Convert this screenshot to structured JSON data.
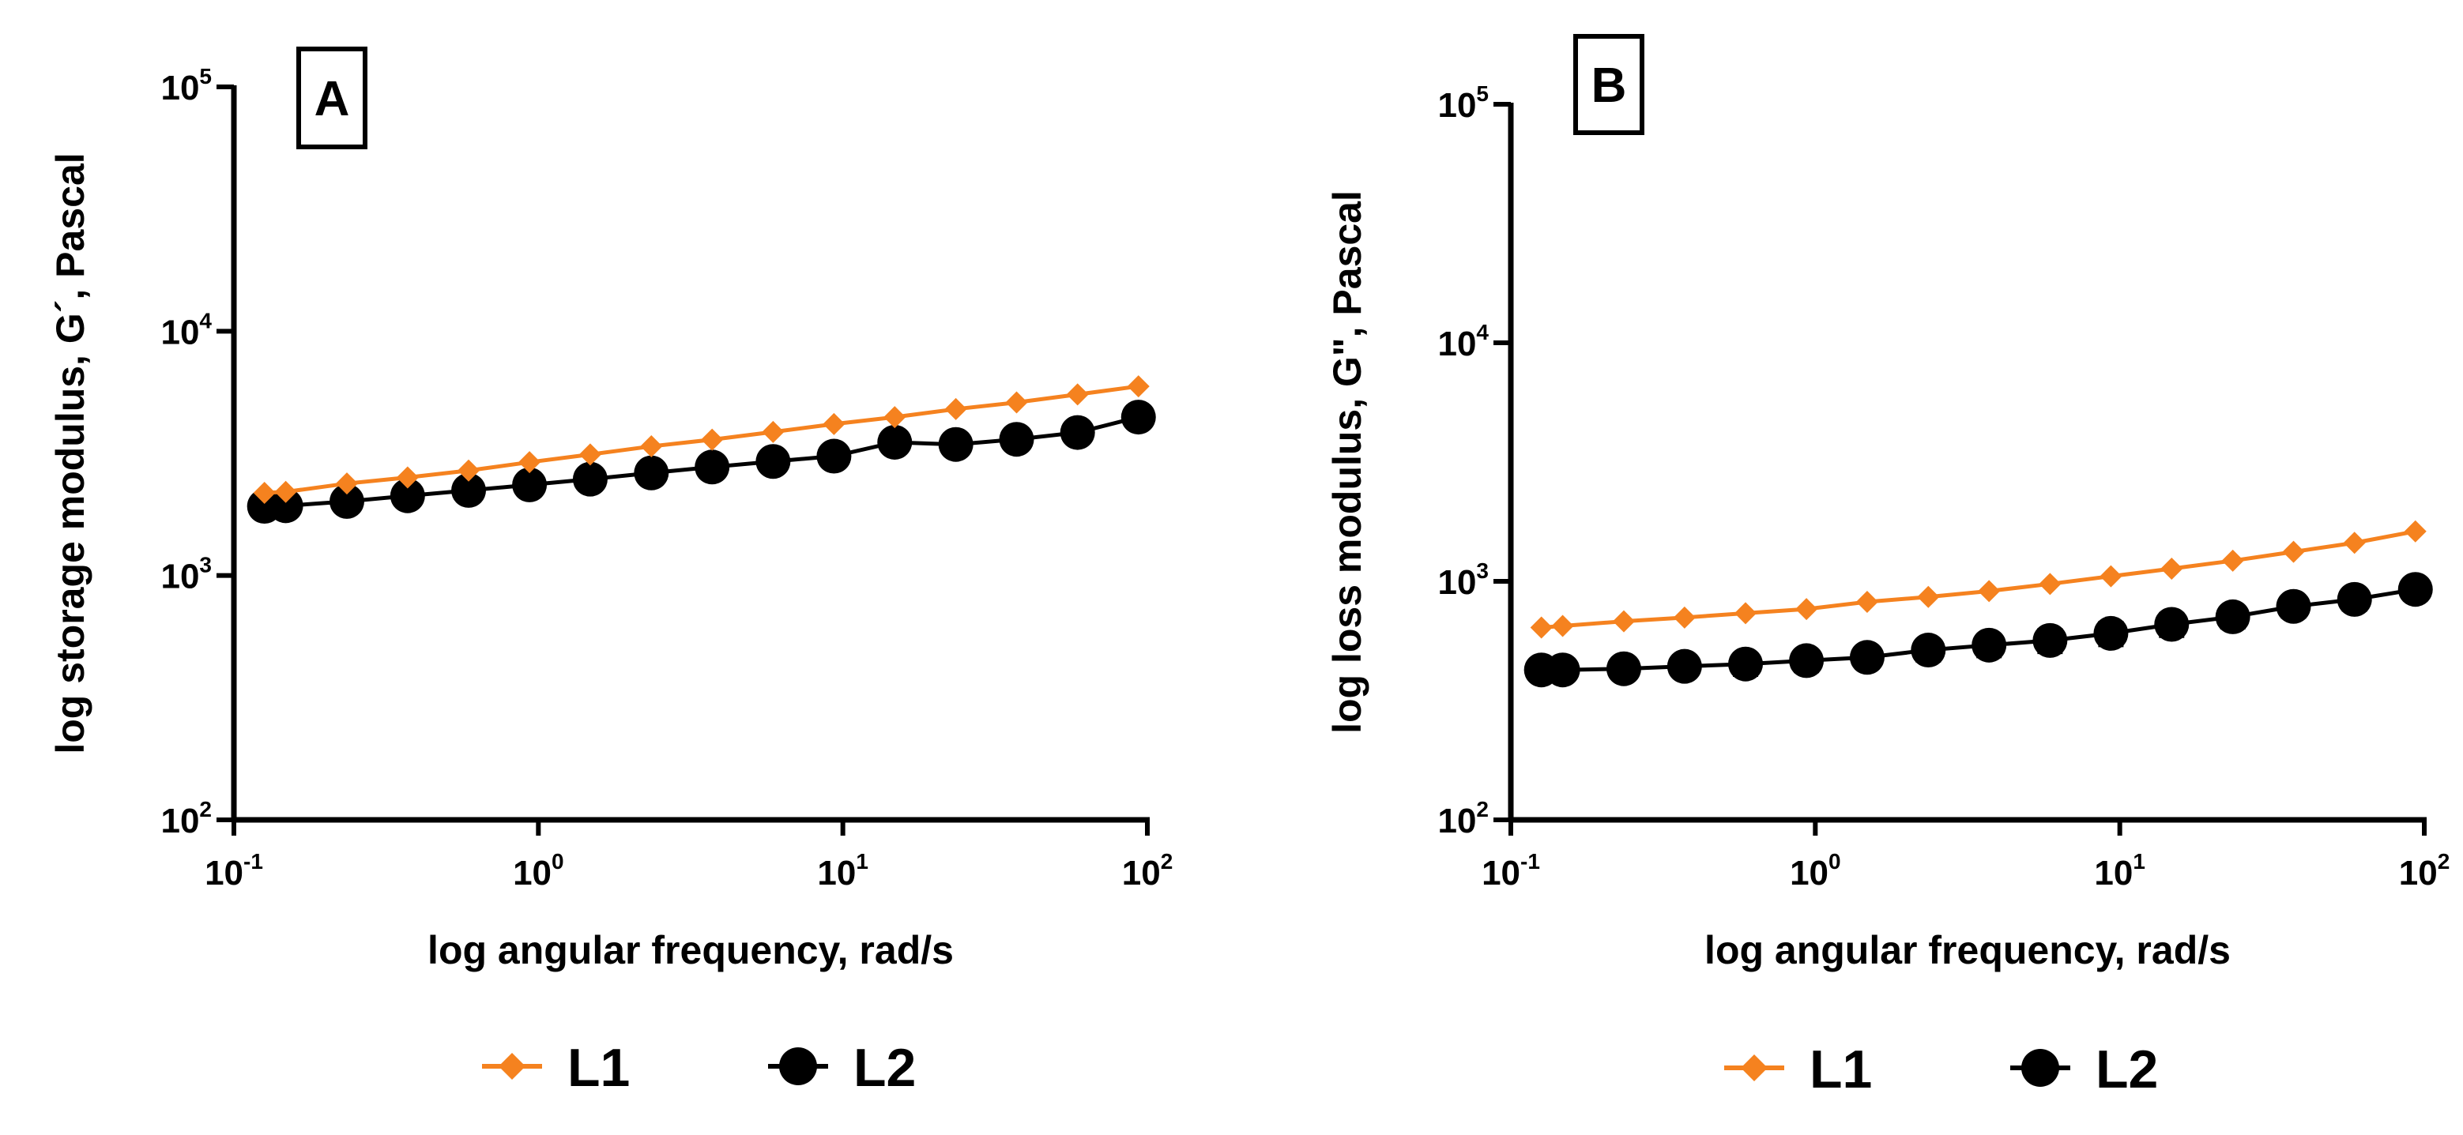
{
  "figure": {
    "panels": [
      "A",
      "B"
    ]
  },
  "chart_data": [
    {
      "type": "line",
      "panel": "A",
      "title": "",
      "xlabel": "log angular frequency, rad/s",
      "ylabel": "log storage modulus, G´, Pascal",
      "xscale": "log",
      "yscale": "log",
      "xlim": [
        0.1,
        100
      ],
      "ylim": [
        100,
        100000
      ],
      "xticks": [
        {
          "base": "10",
          "exp": "-1",
          "value": 0.1
        },
        {
          "base": "10",
          "exp": "0",
          "value": 1
        },
        {
          "base": "10",
          "exp": "1",
          "value": 10
        },
        {
          "base": "10",
          "exp": "2",
          "value": 100
        }
      ],
      "yticks": [
        {
          "base": "10",
          "exp": "2",
          "value": 100
        },
        {
          "base": "10",
          "exp": "3",
          "value": 1000
        },
        {
          "base": "10",
          "exp": "4",
          "value": 10000
        },
        {
          "base": "10",
          "exp": "5",
          "value": 100000
        }
      ],
      "x": [
        0.126,
        0.148,
        0.235,
        0.372,
        0.59,
        0.935,
        1.48,
        2.35,
        3.72,
        5.9,
        9.35,
        14.8,
        23.5,
        37.2,
        59,
        93.5
      ],
      "series": [
        {
          "name": "L1",
          "color": "#F5821F",
          "marker": "diamond",
          "values": [
            2180,
            2200,
            2380,
            2520,
            2690,
            2910,
            3130,
            3380,
            3600,
            3870,
            4170,
            4450,
            4800,
            5110,
            5510,
            5950
          ],
          "errors": []
        },
        {
          "name": "L2",
          "color": "#000000",
          "marker": "circle",
          "values": [
            1920,
            1930,
            2010,
            2120,
            2230,
            2350,
            2480,
            2630,
            2780,
            2930,
            3080,
            3510,
            3440,
            3610,
            3850,
            4450
          ],
          "errors": []
        }
      ],
      "legend": {
        "position": "bottom-center",
        "entries": [
          "L1",
          "L2"
        ]
      },
      "grid": false
    },
    {
      "type": "line",
      "panel": "B",
      "title": "",
      "xlabel": "log angular frequency, rad/s",
      "ylabel": "log loss modulus, G\", Pascal",
      "xscale": "log",
      "yscale": "log",
      "xlim": [
        0.1,
        100
      ],
      "ylim": [
        100,
        100000
      ],
      "xticks": [
        {
          "base": "10",
          "exp": "-1",
          "value": 0.1
        },
        {
          "base": "10",
          "exp": "0",
          "value": 1
        },
        {
          "base": "10",
          "exp": "1",
          "value": 10
        },
        {
          "base": "10",
          "exp": "2",
          "value": 100
        }
      ],
      "yticks": [
        {
          "base": "10",
          "exp": "2",
          "value": 100
        },
        {
          "base": "10",
          "exp": "3",
          "value": 1000
        },
        {
          "base": "10",
          "exp": "4",
          "value": 10000
        },
        {
          "base": "10",
          "exp": "5",
          "value": 100000
        }
      ],
      "x": [
        0.126,
        0.148,
        0.235,
        0.372,
        0.59,
        0.935,
        1.48,
        2.35,
        3.72,
        5.9,
        9.35,
        14.8,
        23.5,
        37.2,
        59,
        93.5
      ],
      "series": [
        {
          "name": "L1",
          "color": "#F5821F",
          "marker": "diamond",
          "values": [
            640,
            650,
            680,
            705,
            735,
            765,
            820,
            860,
            910,
            975,
            1050,
            1130,
            1220,
            1330,
            1450,
            1620
          ],
          "errors": []
        },
        {
          "name": "L2",
          "color": "#000000",
          "marker": "circle",
          "values": [
            425,
            425,
            430,
            440,
            450,
            465,
            480,
            515,
            540,
            565,
            605,
            660,
            710,
            785,
            840,
            925
          ],
          "errors": [
            25,
            25,
            35,
            40,
            45,
            45,
            45,
            50,
            55,
            60,
            65,
            70,
            70,
            75,
            80,
            85
          ]
        }
      ],
      "legend": {
        "position": "bottom-center",
        "entries": [
          "L1",
          "L2"
        ]
      },
      "grid": false
    }
  ]
}
